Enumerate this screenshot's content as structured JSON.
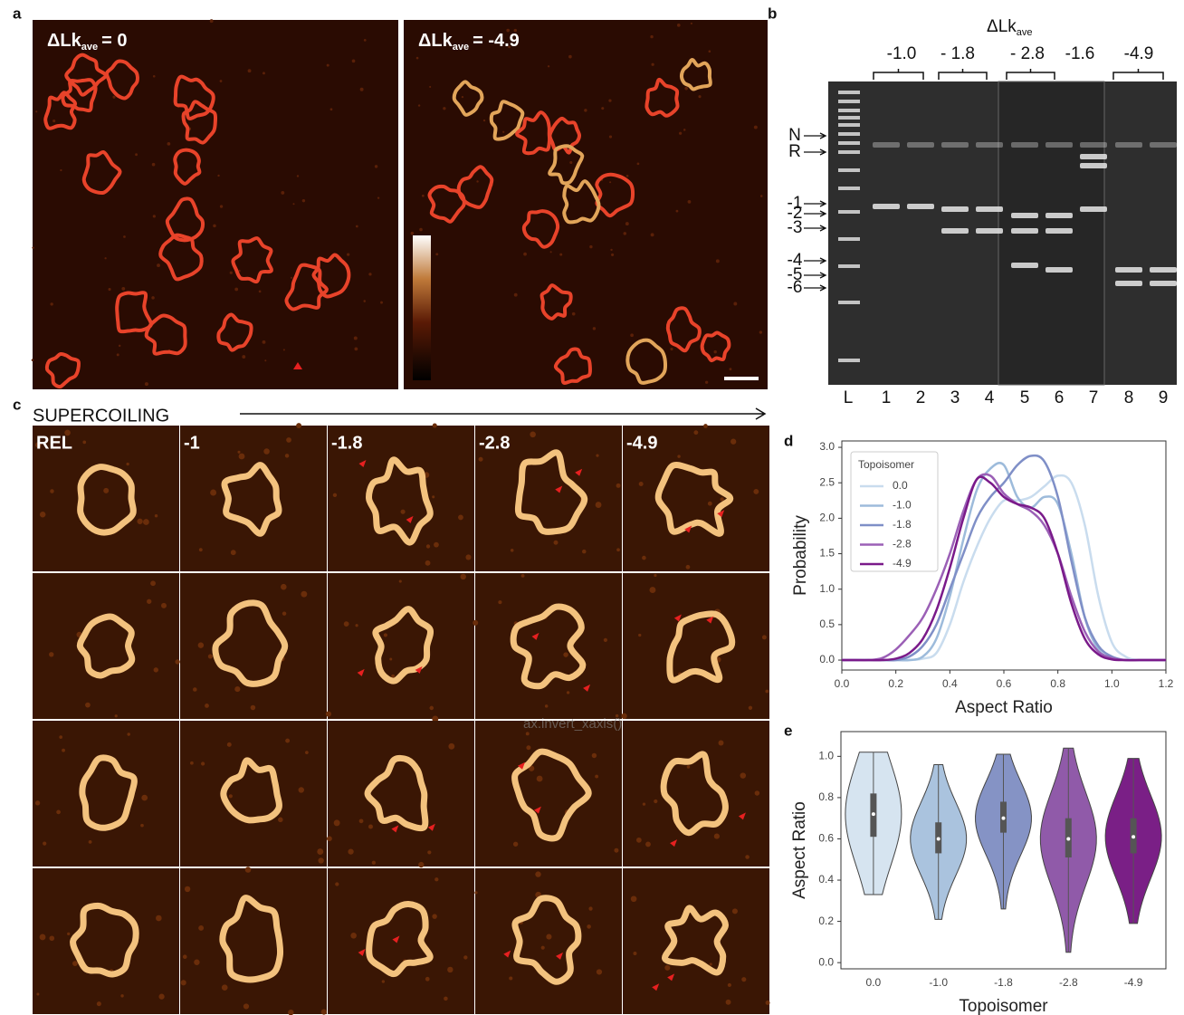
{
  "panel_labels": [
    "a",
    "b",
    "c",
    "d",
    "e"
  ],
  "panel_a": {
    "images": [
      {
        "prefix": "ΔLk",
        "subscript": "ave",
        "suffix": "= 0"
      },
      {
        "prefix": "ΔLk",
        "subscript": "ave",
        "suffix": "= -4.9"
      }
    ]
  },
  "panel_b": {
    "header": {
      "prefix": "ΔLk",
      "subscript": "ave"
    },
    "groups": [
      "-1.0",
      "- 1.8",
      "- 2.8",
      "-1.6",
      "-4.9"
    ],
    "bands": [
      "N",
      "R",
      "-1",
      "-2",
      "-3",
      "-4",
      "-5",
      "-6"
    ],
    "lanes": [
      "L",
      "1",
      "2",
      "3",
      "4",
      "5",
      "6",
      "7",
      "8",
      "9"
    ]
  },
  "panel_c": {
    "heading": "SUPERCOILING",
    "columns": [
      "REL",
      "-1",
      "-1.8",
      "-2.8",
      "-4.9"
    ],
    "overlay_text": "ax.invert_xaxis()"
  },
  "chart_data": [
    {
      "type": "line",
      "x_label": "Aspect Ratio",
      "y_label": "Probability",
      "legend_title": "Topoisomer",
      "x": [
        0,
        0.05,
        0.1,
        0.15,
        0.2,
        0.25,
        0.3,
        0.35,
        0.4,
        0.45,
        0.5,
        0.55,
        0.6,
        0.65,
        0.7,
        0.75,
        0.8,
        0.85,
        0.9,
        0.95,
        1.0,
        1.05,
        1.1,
        1.15,
        1.2
      ],
      "series": [
        {
          "name": "0.0",
          "color": "#c9dcee",
          "values": [
            0,
            0,
            0,
            0,
            0,
            0,
            0.02,
            0.1,
            0.5,
            1.1,
            1.6,
            2.0,
            2.25,
            2.25,
            2.3,
            2.45,
            2.6,
            2.5,
            1.9,
            0.9,
            0.25,
            0.05,
            0,
            0,
            0
          ]
        },
        {
          "name": "-1.0",
          "color": "#9dbbdb",
          "values": [
            0,
            0,
            0,
            0,
            0,
            0,
            0.05,
            0.3,
            0.9,
            1.7,
            2.4,
            2.7,
            2.75,
            2.3,
            2.15,
            2.3,
            2.2,
            1.5,
            0.6,
            0.15,
            0.03,
            0,
            0,
            0,
            0
          ]
        },
        {
          "name": "-1.8",
          "color": "#7f8fc7",
          "values": [
            0,
            0,
            0,
            0,
            0,
            0.05,
            0.2,
            0.5,
            1.0,
            1.5,
            2.0,
            2.3,
            2.5,
            2.75,
            2.88,
            2.8,
            2.3,
            1.4,
            0.6,
            0.2,
            0.05,
            0,
            0,
            0,
            0
          ]
        },
        {
          "name": "-2.8",
          "color": "#9b60b6",
          "values": [
            0,
            0,
            0,
            0.03,
            0.15,
            0.35,
            0.6,
            1.0,
            1.5,
            2.1,
            2.55,
            2.6,
            2.35,
            2.2,
            2.1,
            1.9,
            1.5,
            0.9,
            0.4,
            0.12,
            0.03,
            0,
            0,
            0,
            0
          ]
        },
        {
          "name": "-4.9",
          "color": "#7a1a8a",
          "values": [
            0,
            0,
            0,
            0,
            0.02,
            0.1,
            0.3,
            0.7,
            1.3,
            2.0,
            2.55,
            2.5,
            2.3,
            2.2,
            2.15,
            2.0,
            1.5,
            0.8,
            0.3,
            0.08,
            0.01,
            0,
            0,
            0,
            0
          ]
        }
      ],
      "xlim": [
        0,
        1.2
      ],
      "ylim": [
        -0.14,
        3.09
      ],
      "xticks": [
        {
          "value": 0,
          "label": "0.0"
        },
        0.2,
        0.4,
        0.6,
        0.8,
        {
          "value": 1,
          "label": "1.0"
        },
        1.2
      ],
      "yticks": [
        {
          "value": 0,
          "label": "0.0"
        },
        0.5,
        {
          "value": 1,
          "label": "1.0"
        },
        1.5,
        {
          "value": 2,
          "label": "2.0"
        },
        2.5,
        {
          "value": 3,
          "label": "3.0"
        }
      ]
    },
    {
      "type": "violin",
      "x_label": "Topoisomer",
      "y_label": "Aspect Ratio",
      "categories": [
        "0.0",
        "-1.0",
        "-1.8",
        "-2.8",
        "-4.9"
      ],
      "colors": [
        "#d6e4f0",
        "#aac3de",
        "#8593c5",
        "#905aa9",
        "#7a1f86"
      ],
      "values": [
        0.72,
        0.6,
        0.7,
        0.6,
        0.61
      ],
      "q1": [
        0.61,
        0.53,
        0.63,
        0.51,
        0.53
      ],
      "q3": [
        0.82,
        0.68,
        0.78,
        0.7,
        0.7
      ],
      "min": [
        0.33,
        0.21,
        0.26,
        0.05,
        0.19
      ],
      "max": [
        1.02,
        0.96,
        1.01,
        1.04,
        0.99
      ],
      "ylim": [
        -0.03,
        1.12
      ],
      "yticks": [
        {
          "value": 0,
          "label": "0.0"
        },
        0.2,
        0.4,
        0.6,
        0.8,
        {
          "value": 1,
          "label": "1.0"
        }
      ]
    }
  ]
}
